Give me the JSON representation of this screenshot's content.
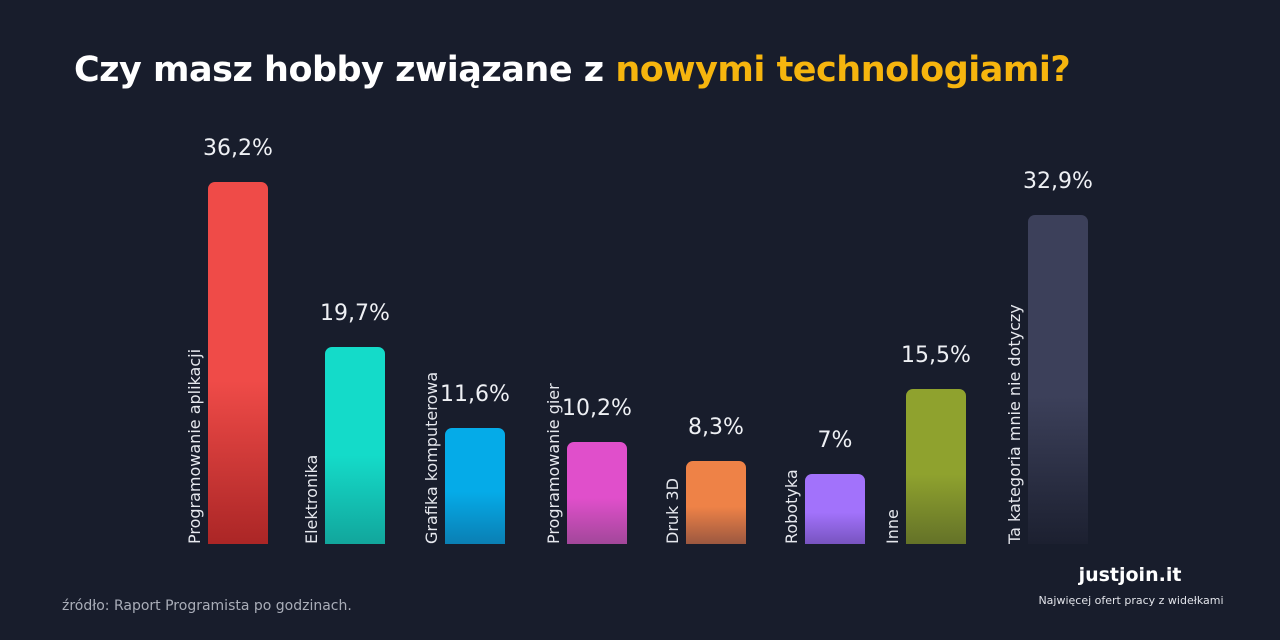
{
  "title_prefix": "Czy masz hobby związane z ",
  "title_highlight": "nowymi technologiami?",
  "source": "źródło: Raport Programista po godzinach.",
  "brand": "justjoin.it",
  "tagline": "Najwięcej ofert pracy z widełkami",
  "chart_data": {
    "type": "bar",
    "title": "Czy masz hobby związane z nowymi technologiami?",
    "categories": [
      "Programowanie aplikacji",
      "Elektronika",
      "Grafika komputerowa",
      "Programowanie gier",
      "Druk 3D",
      "Robotyka",
      "Inne",
      "Ta kategoria mnie nie dotyczy"
    ],
    "values": [
      36.2,
      19.7,
      11.6,
      10.2,
      8.3,
      7,
      15.5,
      32.9
    ],
    "value_labels": [
      "36,2%",
      "19,7%",
      "11,6%",
      "10,2%",
      "8,3%",
      "7%",
      "15,5%",
      "32,9%"
    ],
    "colors": [
      [
        "#ef4b48",
        "#ab2626"
      ],
      [
        "#14dbc9",
        "#12a69c"
      ],
      [
        "#05abe8",
        "#0a7fb4"
      ],
      [
        "#e04fcb",
        "#a2479a"
      ],
      [
        "#ee8247",
        "#9c5840"
      ],
      [
        "#a272fb",
        "#7854c0"
      ],
      [
        "#8fa22e",
        "#647228"
      ],
      [
        "#3c405a",
        "#1c2030"
      ]
    ],
    "ylim": [
      0,
      40
    ],
    "xlabel": "",
    "ylabel": ""
  }
}
